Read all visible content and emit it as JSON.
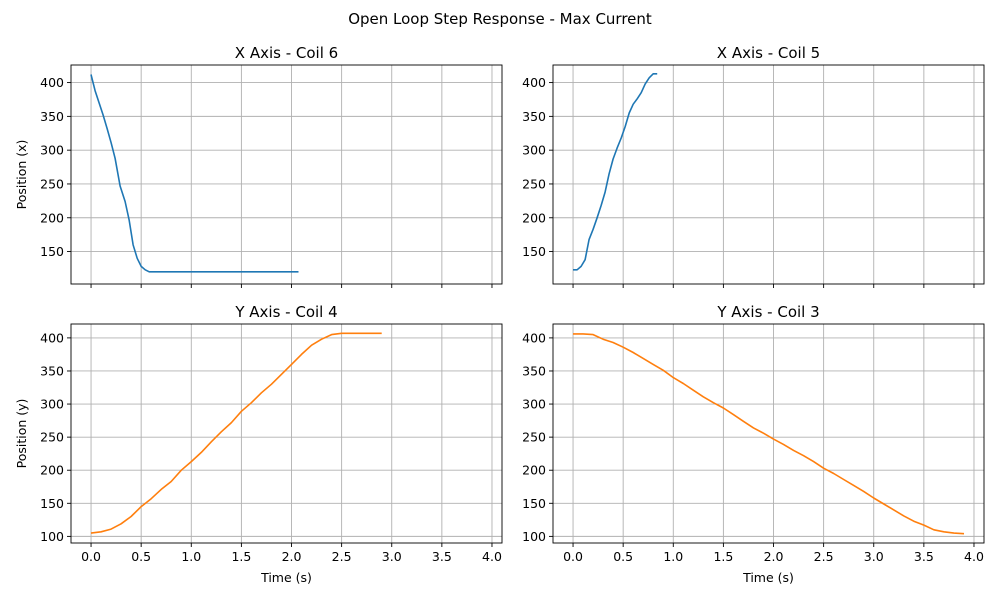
{
  "figure": {
    "title": "Open Loop Step Response - Max Current"
  },
  "chart_data": [
    {
      "type": "line",
      "title": "X Axis - Coil 6",
      "xlabel": "",
      "ylabel": "Position (x)",
      "xlim": [
        -0.2,
        4.1
      ],
      "ylim": [
        102,
        426
      ],
      "xticks": [
        0.0,
        0.5,
        1.0,
        1.5,
        2.0,
        2.5,
        3.0,
        3.5,
        4.0
      ],
      "xtick_labels_visible": false,
      "yticks": [
        150,
        200,
        250,
        300,
        350,
        400
      ],
      "grid": true,
      "color": "#1f77b4",
      "x": [
        0.0,
        0.04,
        0.08,
        0.12,
        0.16,
        0.2,
        0.24,
        0.29,
        0.34,
        0.38,
        0.42,
        0.46,
        0.5,
        0.54,
        0.58,
        0.62,
        0.7,
        0.8,
        1.0,
        1.2,
        1.5,
        1.8,
        2.07
      ],
      "y": [
        412,
        388,
        370,
        352,
        332,
        311,
        288,
        247,
        224,
        197,
        160,
        140,
        128,
        123,
        120,
        120,
        120,
        120,
        120,
        120,
        120,
        120,
        120
      ]
    },
    {
      "type": "line",
      "title": "X Axis - Coil 5",
      "xlabel": "",
      "ylabel": "",
      "xlim": [
        -0.2,
        4.1
      ],
      "ylim": [
        102,
        426
      ],
      "xticks": [
        0.0,
        0.5,
        1.0,
        1.5,
        2.0,
        2.5,
        3.0,
        3.5,
        4.0
      ],
      "xtick_labels_visible": false,
      "yticks": [
        150,
        200,
        250,
        300,
        350,
        400
      ],
      "grid": true,
      "color": "#1f77b4",
      "x": [
        0.0,
        0.04,
        0.08,
        0.12,
        0.16,
        0.2,
        0.24,
        0.28,
        0.32,
        0.36,
        0.4,
        0.44,
        0.48,
        0.52,
        0.56,
        0.6,
        0.64,
        0.68,
        0.72,
        0.76,
        0.8,
        0.84
      ],
      "y": [
        123,
        123,
        128,
        138,
        168,
        183,
        200,
        218,
        238,
        265,
        287,
        303,
        318,
        335,
        355,
        368,
        376,
        385,
        398,
        407,
        413,
        413
      ]
    },
    {
      "type": "line",
      "title": "Y Axis - Coil 4",
      "xlabel": "Time (s)",
      "ylabel": "Position (y)",
      "xlim": [
        -0.2,
        4.1
      ],
      "ylim": [
        90,
        421
      ],
      "xticks": [
        0.0,
        0.5,
        1.0,
        1.5,
        2.0,
        2.5,
        3.0,
        3.5,
        4.0
      ],
      "xtick_labels": [
        "0.0",
        "0.5",
        "1.0",
        "1.5",
        "2.0",
        "2.5",
        "3.0",
        "3.5",
        "4.0"
      ],
      "yticks": [
        100,
        150,
        200,
        250,
        300,
        350,
        400
      ],
      "grid": true,
      "color": "#ff7f0e",
      "x": [
        0.0,
        0.1,
        0.2,
        0.3,
        0.4,
        0.5,
        0.6,
        0.7,
        0.8,
        0.9,
        1.0,
        1.1,
        1.2,
        1.3,
        1.4,
        1.5,
        1.6,
        1.7,
        1.8,
        1.9,
        2.0,
        2.1,
        2.2,
        2.3,
        2.4,
        2.5,
        2.6,
        2.7,
        2.8,
        2.9
      ],
      "y": [
        105,
        107,
        111,
        119,
        130,
        145,
        157,
        171,
        183,
        200,
        213,
        227,
        243,
        258,
        272,
        289,
        302,
        317,
        330,
        345,
        360,
        375,
        389,
        398,
        405,
        407,
        407,
        407,
        407,
        407
      ]
    },
    {
      "type": "line",
      "title": "Y Axis - Coil 3",
      "xlabel": "Time (s)",
      "ylabel": "",
      "xlim": [
        -0.2,
        4.1
      ],
      "ylim": [
        90,
        421
      ],
      "xticks": [
        0.0,
        0.5,
        1.0,
        1.5,
        2.0,
        2.5,
        3.0,
        3.5,
        4.0
      ],
      "xtick_labels": [
        "0.0",
        "0.5",
        "1.0",
        "1.5",
        "2.0",
        "2.5",
        "3.0",
        "3.5",
        "4.0"
      ],
      "yticks": [
        100,
        150,
        200,
        250,
        300,
        350,
        400
      ],
      "grid": true,
      "color": "#ff7f0e",
      "x": [
        0.0,
        0.1,
        0.2,
        0.3,
        0.4,
        0.5,
        0.6,
        0.7,
        0.8,
        0.9,
        1.0,
        1.1,
        1.2,
        1.3,
        1.4,
        1.5,
        1.6,
        1.7,
        1.8,
        1.9,
        2.0,
        2.1,
        2.2,
        2.3,
        2.4,
        2.5,
        2.6,
        2.7,
        2.8,
        2.9,
        3.0,
        3.1,
        3.2,
        3.3,
        3.4,
        3.5,
        3.6,
        3.7,
        3.8,
        3.9
      ],
      "y": [
        406,
        406,
        405,
        398,
        393,
        386,
        378,
        369,
        360,
        351,
        340,
        331,
        321,
        311,
        302,
        294,
        284,
        274,
        264,
        256,
        247,
        239,
        230,
        222,
        213,
        203,
        195,
        186,
        177,
        168,
        158,
        149,
        140,
        131,
        123,
        117,
        110,
        107,
        105,
        104
      ]
    }
  ]
}
